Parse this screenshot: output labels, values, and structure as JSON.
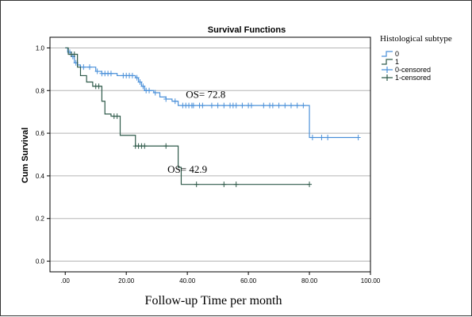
{
  "chart_data": {
    "type": "line",
    "subtype": "kaplan-meier-step",
    "title": "Survival Functions",
    "ylabel": "Cum Survival",
    "xlabel": "Follow-up Time per month",
    "xlim": [
      -5,
      100
    ],
    "ylim": [
      -0.05,
      1.05
    ],
    "x_ticks": [
      0,
      20,
      40,
      60,
      80,
      100
    ],
    "x_tick_labels": [
      ".00",
      "20.00",
      "40.00",
      "60.00",
      "80.00",
      "100.00"
    ],
    "y_ticks": [
      0,
      0.2,
      0.4,
      0.6,
      0.8,
      1.0
    ],
    "y_tick_labels": [
      "0.0",
      "0.2",
      "0.4",
      "0.6",
      "0.8",
      "1.0"
    ],
    "grid": "horizontal",
    "legend_title": "Histological subtype",
    "legend_position": "right",
    "legend": [
      "0",
      "1",
      "0-censored",
      "1-censored"
    ],
    "series": [
      {
        "name": "0",
        "color": "#4a90d9",
        "steps": [
          [
            0,
            1.0
          ],
          [
            0.8,
            0.98
          ],
          [
            2,
            0.96
          ],
          [
            3,
            0.93
          ],
          [
            4,
            0.92
          ],
          [
            5,
            0.91
          ],
          [
            10,
            0.89
          ],
          [
            12,
            0.88
          ],
          [
            17,
            0.87
          ],
          [
            23,
            0.86
          ],
          [
            24,
            0.84
          ],
          [
            25,
            0.82
          ],
          [
            26,
            0.8
          ],
          [
            29,
            0.79
          ],
          [
            31,
            0.77
          ],
          [
            33,
            0.76
          ],
          [
            35,
            0.75
          ],
          [
            37,
            0.73
          ],
          [
            80,
            0.58
          ],
          [
            96,
            0.58
          ]
        ],
        "censored": [
          1.5,
          2.5,
          3.5,
          6,
          8,
          10.5,
          12,
          13,
          14,
          15,
          19,
          20,
          21,
          22,
          23.5,
          24.5,
          25.5,
          26.5,
          27.5,
          29.5,
          33,
          36,
          38.5,
          39.5,
          40.5,
          41.5,
          42,
          44,
          45,
          48,
          50,
          52,
          54,
          55,
          56,
          58,
          60,
          61,
          65,
          67,
          68,
          70,
          72,
          74,
          76,
          78,
          81,
          84,
          86,
          96
        ]
      },
      {
        "name": "1",
        "color": "#2f5a4a",
        "steps": [
          [
            0,
            1.0
          ],
          [
            1,
            0.97
          ],
          [
            4,
            0.91
          ],
          [
            5,
            0.87
          ],
          [
            7,
            0.84
          ],
          [
            9,
            0.82
          ],
          [
            12,
            0.75
          ],
          [
            13,
            0.69
          ],
          [
            15,
            0.68
          ],
          [
            18,
            0.59
          ],
          [
            23,
            0.54
          ],
          [
            37,
            0.44
          ],
          [
            38,
            0.36
          ],
          [
            80,
            0.36
          ]
        ],
        "censored": [
          2,
          3,
          10,
          11,
          16,
          17,
          23,
          24,
          25,
          26,
          33,
          43,
          52,
          56,
          80
        ]
      }
    ],
    "annotations": [
      {
        "text": "OS= 72.8",
        "x": 46,
        "y": 0.766
      },
      {
        "text": "OS= 42.9",
        "x": 40,
        "y": 0.414
      }
    ]
  }
}
